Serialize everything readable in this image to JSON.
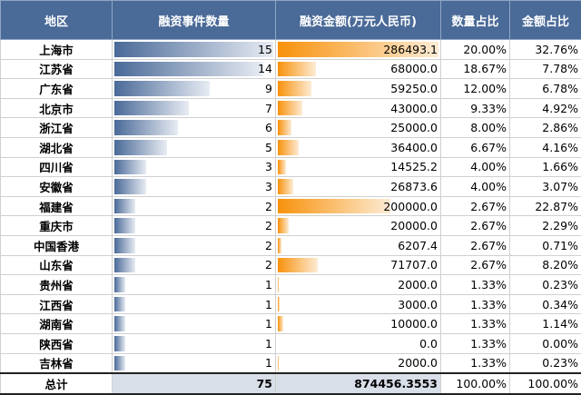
{
  "headers": [
    "地区",
    "融资事件数量",
    "融资金额(万元人民币)",
    "数量占比",
    "金额占比"
  ],
  "colors": {
    "header": "#4a6a98",
    "count_bar": "#4a6a98",
    "amount_bar": "#f8920c"
  },
  "rows": [
    {
      "region": "上海市",
      "count": 15,
      "amount": "286493.1",
      "count_pct": "20.00%",
      "amount_pct": "32.76%"
    },
    {
      "region": "江苏省",
      "count": 14,
      "amount": "68000.0",
      "count_pct": "18.67%",
      "amount_pct": "7.78%"
    },
    {
      "region": "广东省",
      "count": 9,
      "amount": "59250.0",
      "count_pct": "12.00%",
      "amount_pct": "6.78%"
    },
    {
      "region": "北京市",
      "count": 7,
      "amount": "43000.0",
      "count_pct": "9.33%",
      "amount_pct": "4.92%"
    },
    {
      "region": "浙江省",
      "count": 6,
      "amount": "25000.0",
      "count_pct": "8.00%",
      "amount_pct": "2.86%"
    },
    {
      "region": "湖北省",
      "count": 5,
      "amount": "36400.0",
      "count_pct": "6.67%",
      "amount_pct": "4.16%"
    },
    {
      "region": "四川省",
      "count": 3,
      "amount": "14525.2",
      "count_pct": "4.00%",
      "amount_pct": "1.66%"
    },
    {
      "region": "安徽省",
      "count": 3,
      "amount": "26873.6",
      "count_pct": "4.00%",
      "amount_pct": "3.07%"
    },
    {
      "region": "福建省",
      "count": 2,
      "amount": "200000.0",
      "count_pct": "2.67%",
      "amount_pct": "22.87%"
    },
    {
      "region": "重庆市",
      "count": 2,
      "amount": "20000.0",
      "count_pct": "2.67%",
      "amount_pct": "2.29%"
    },
    {
      "region": "中国香港",
      "count": 2,
      "amount": "6207.4",
      "count_pct": "2.67%",
      "amount_pct": "0.71%"
    },
    {
      "region": "山东省",
      "count": 2,
      "amount": "71707.0",
      "count_pct": "2.67%",
      "amount_pct": "8.20%"
    },
    {
      "region": "贵州省",
      "count": 1,
      "amount": "2000.0",
      "count_pct": "1.33%",
      "amount_pct": "0.23%"
    },
    {
      "region": "江西省",
      "count": 1,
      "amount": "3000.0",
      "count_pct": "1.33%",
      "amount_pct": "0.34%"
    },
    {
      "region": "湖南省",
      "count": 1,
      "amount": "10000.0",
      "count_pct": "1.33%",
      "amount_pct": "1.14%"
    },
    {
      "region": "陕西省",
      "count": 1,
      "amount": "0.0",
      "count_pct": "1.33%",
      "amount_pct": "0.00%"
    },
    {
      "region": "吉林省",
      "count": 1,
      "amount": "2000.0",
      "count_pct": "1.33%",
      "amount_pct": "0.23%"
    }
  ],
  "total": {
    "label": "总计",
    "count": "75",
    "amount": "874456.3553",
    "count_pct": "100.00%",
    "amount_pct": "100.00%"
  }
}
